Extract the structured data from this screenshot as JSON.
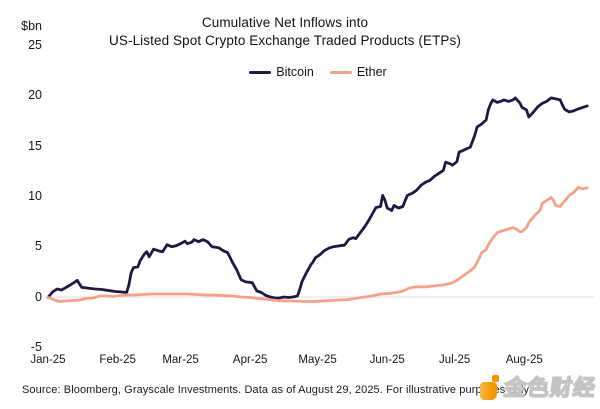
{
  "title": {
    "line1": "Cumulative Net Inflows into",
    "line2": "US-Listed Spot Crypto Exchange Traded Products (ETPs)"
  },
  "y_axis": {
    "unit": "$bn",
    "ticks": [
      25,
      20,
      15,
      10,
      5,
      0,
      -5
    ]
  },
  "x_axis": {
    "ticks": [
      "Jan-25",
      "Feb-25",
      "Mar-25",
      "Apr-25",
      "May-25",
      "Jun-25",
      "Jul-25",
      "Aug-25"
    ]
  },
  "legend": [
    {
      "label": "Bitcoin",
      "color": "#211744"
    },
    {
      "label": "Ether",
      "color": "#F3A287"
    }
  ],
  "footer": "Source: Bloomberg, Grayscale Investments. Data as of August 29, 2025. For illustrative purposes only.",
  "watermark": {
    "text": "金色财经",
    "logo_color_dark": "#F39800",
    "logo_color_light": "#F9B84A"
  },
  "chart_data": {
    "type": "line",
    "title": "Cumulative Net Inflows into US-Listed Spot Crypto Exchange Traded Products (ETPs)",
    "ylabel": "$bn",
    "ylim": [
      -5,
      25
    ],
    "x_unit": "days since Jan 1, 2025",
    "xlim": [
      0,
      240
    ],
    "x_tick_days": [
      0,
      31,
      59,
      90,
      120,
      151,
      181,
      212
    ],
    "grid": "zero-line-only",
    "zero_line_color": "#dcdcdc",
    "legend_position": "top-center",
    "series": [
      {
        "name": "Bitcoin",
        "color": "#211744",
        "points": [
          [
            0,
            -0.05
          ],
          [
            2,
            0.5
          ],
          [
            4,
            0.8
          ],
          [
            6,
            0.7
          ],
          [
            8,
            0.95
          ],
          [
            10,
            1.2
          ],
          [
            13,
            1.65
          ],
          [
            14,
            1.3
          ],
          [
            15,
            0.95
          ],
          [
            17,
            0.9
          ],
          [
            19,
            0.85
          ],
          [
            21,
            0.8
          ],
          [
            24,
            0.75
          ],
          [
            27,
            0.65
          ],
          [
            30,
            0.55
          ],
          [
            33,
            0.5
          ],
          [
            35,
            0.45
          ],
          [
            36,
            1.2
          ],
          [
            37,
            2.4
          ],
          [
            38,
            2.9
          ],
          [
            40,
            3.0
          ],
          [
            41,
            3.6
          ],
          [
            43,
            4.3
          ],
          [
            44,
            4.5
          ],
          [
            45,
            4.0
          ],
          [
            47,
            4.75
          ],
          [
            49,
            4.6
          ],
          [
            51,
            4.5
          ],
          [
            53,
            5.2
          ],
          [
            55,
            5.0
          ],
          [
            57,
            5.1
          ],
          [
            59,
            5.3
          ],
          [
            61,
            5.55
          ],
          [
            62,
            5.3
          ],
          [
            64,
            5.45
          ],
          [
            65,
            5.7
          ],
          [
            67,
            5.5
          ],
          [
            69,
            5.7
          ],
          [
            71,
            5.5
          ],
          [
            73,
            5.0
          ],
          [
            76,
            4.9
          ],
          [
            78,
            4.6
          ],
          [
            80,
            4.4
          ],
          [
            82,
            3.5
          ],
          [
            84,
            2.7
          ],
          [
            86,
            1.7
          ],
          [
            88,
            1.5
          ],
          [
            90,
            1.45
          ],
          [
            91,
            1.4
          ],
          [
            93,
            0.6
          ],
          [
            95,
            0.45
          ],
          [
            97,
            0.15
          ],
          [
            99,
            0.0
          ],
          [
            101,
            -0.1
          ],
          [
            103,
            -0.1
          ],
          [
            105,
            0.0
          ],
          [
            107,
            -0.05
          ],
          [
            109,
            0.0
          ],
          [
            111,
            0.1
          ],
          [
            112,
            0.7
          ],
          [
            113,
            1.5
          ],
          [
            115,
            2.4
          ],
          [
            117,
            3.2
          ],
          [
            118,
            3.5
          ],
          [
            119,
            3.9
          ],
          [
            121,
            4.2
          ],
          [
            123,
            4.6
          ],
          [
            125,
            4.85
          ],
          [
            127,
            5.0
          ],
          [
            130,
            5.1
          ],
          [
            132,
            5.15
          ],
          [
            134,
            5.75
          ],
          [
            136,
            5.9
          ],
          [
            137,
            5.8
          ],
          [
            139,
            6.4
          ],
          [
            141,
            7.0
          ],
          [
            143,
            7.7
          ],
          [
            145,
            8.5
          ],
          [
            146,
            8.9
          ],
          [
            148,
            9.0
          ],
          [
            149,
            10.1
          ],
          [
            150,
            9.6
          ],
          [
            151,
            8.85
          ],
          [
            153,
            8.6
          ],
          [
            154,
            9.1
          ],
          [
            156,
            8.85
          ],
          [
            158,
            9.0
          ],
          [
            159,
            9.6
          ],
          [
            160,
            10.1
          ],
          [
            162,
            10.3
          ],
          [
            164,
            10.6
          ],
          [
            166,
            11.1
          ],
          [
            168,
            11.4
          ],
          [
            170,
            11.6
          ],
          [
            172,
            12.0
          ],
          [
            174,
            12.3
          ],
          [
            176,
            12.6
          ],
          [
            177,
            13.4
          ],
          [
            179,
            13.25
          ],
          [
            180,
            13.1
          ],
          [
            182,
            13.45
          ],
          [
            183,
            14.4
          ],
          [
            185,
            14.6
          ],
          [
            187,
            14.8
          ],
          [
            188,
            14.9
          ],
          [
            189,
            15.5
          ],
          [
            190,
            16.1
          ],
          [
            191,
            16.9
          ],
          [
            193,
            17.2
          ],
          [
            195,
            17.6
          ],
          [
            196,
            18.6
          ],
          [
            197,
            19.2
          ],
          [
            198,
            19.6
          ],
          [
            200,
            19.35
          ],
          [
            202,
            19.5
          ],
          [
            203,
            19.6
          ],
          [
            205,
            19.45
          ],
          [
            207,
            19.6
          ],
          [
            208,
            19.8
          ],
          [
            210,
            19.3
          ],
          [
            211,
            18.85
          ],
          [
            213,
            18.6
          ],
          [
            214,
            17.9
          ],
          [
            216,
            18.35
          ],
          [
            218,
            18.9
          ],
          [
            220,
            19.25
          ],
          [
            222,
            19.45
          ],
          [
            224,
            19.8
          ],
          [
            226,
            19.7
          ],
          [
            228,
            19.6
          ],
          [
            229,
            19.1
          ],
          [
            230,
            18.65
          ],
          [
            232,
            18.4
          ],
          [
            234,
            18.5
          ],
          [
            236,
            18.7
          ],
          [
            238,
            18.85
          ],
          [
            240,
            19.0
          ]
        ]
      },
      {
        "name": "Ether",
        "color": "#F3A287",
        "points": [
          [
            0,
            -0.05
          ],
          [
            3,
            -0.3
          ],
          [
            5,
            -0.45
          ],
          [
            8,
            -0.4
          ],
          [
            11,
            -0.35
          ],
          [
            14,
            -0.3
          ],
          [
            17,
            -0.15
          ],
          [
            20,
            -0.1
          ],
          [
            23,
            0.1
          ],
          [
            26,
            0.1
          ],
          [
            29,
            0.05
          ],
          [
            32,
            0.15
          ],
          [
            35,
            0.2
          ],
          [
            38,
            0.2
          ],
          [
            42,
            0.25
          ],
          [
            46,
            0.3
          ],
          [
            50,
            0.3
          ],
          [
            54,
            0.3
          ],
          [
            58,
            0.3
          ],
          [
            62,
            0.3
          ],
          [
            66,
            0.25
          ],
          [
            70,
            0.2
          ],
          [
            74,
            0.2
          ],
          [
            78,
            0.15
          ],
          [
            82,
            0.1
          ],
          [
            86,
            0.0
          ],
          [
            90,
            -0.05
          ],
          [
            94,
            -0.15
          ],
          [
            98,
            -0.25
          ],
          [
            102,
            -0.35
          ],
          [
            106,
            -0.4
          ],
          [
            110,
            -0.4
          ],
          [
            114,
            -0.45
          ],
          [
            118,
            -0.45
          ],
          [
            122,
            -0.4
          ],
          [
            126,
            -0.35
          ],
          [
            130,
            -0.3
          ],
          [
            134,
            -0.25
          ],
          [
            138,
            -0.1
          ],
          [
            141,
            0.0
          ],
          [
            144,
            0.1
          ],
          [
            148,
            0.3
          ],
          [
            152,
            0.35
          ],
          [
            156,
            0.5
          ],
          [
            158,
            0.6
          ],
          [
            161,
            0.9
          ],
          [
            164,
            1.0
          ],
          [
            168,
            1.0
          ],
          [
            172,
            1.1
          ],
          [
            176,
            1.2
          ],
          [
            180,
            1.4
          ],
          [
            183,
            1.8
          ],
          [
            186,
            2.3
          ],
          [
            188,
            2.6
          ],
          [
            190,
            3.0
          ],
          [
            192,
            3.9
          ],
          [
            193,
            4.4
          ],
          [
            195,
            4.7
          ],
          [
            196,
            5.2
          ],
          [
            198,
            5.9
          ],
          [
            200,
            6.4
          ],
          [
            201,
            6.5
          ],
          [
            204,
            6.7
          ],
          [
            207,
            6.9
          ],
          [
            208,
            6.8
          ],
          [
            210,
            6.5
          ],
          [
            211,
            6.5
          ],
          [
            213,
            6.9
          ],
          [
            214,
            7.4
          ],
          [
            216,
            7.9
          ],
          [
            217,
            8.2
          ],
          [
            219,
            8.6
          ],
          [
            220,
            9.3
          ],
          [
            222,
            9.6
          ],
          [
            224,
            9.9
          ],
          [
            225,
            9.6
          ],
          [
            226,
            9.1
          ],
          [
            228,
            9.0
          ],
          [
            229,
            9.3
          ],
          [
            231,
            9.8
          ],
          [
            232,
            10.1
          ],
          [
            234,
            10.4
          ],
          [
            236,
            10.9
          ],
          [
            238,
            10.75
          ],
          [
            240,
            10.85
          ]
        ]
      }
    ]
  }
}
